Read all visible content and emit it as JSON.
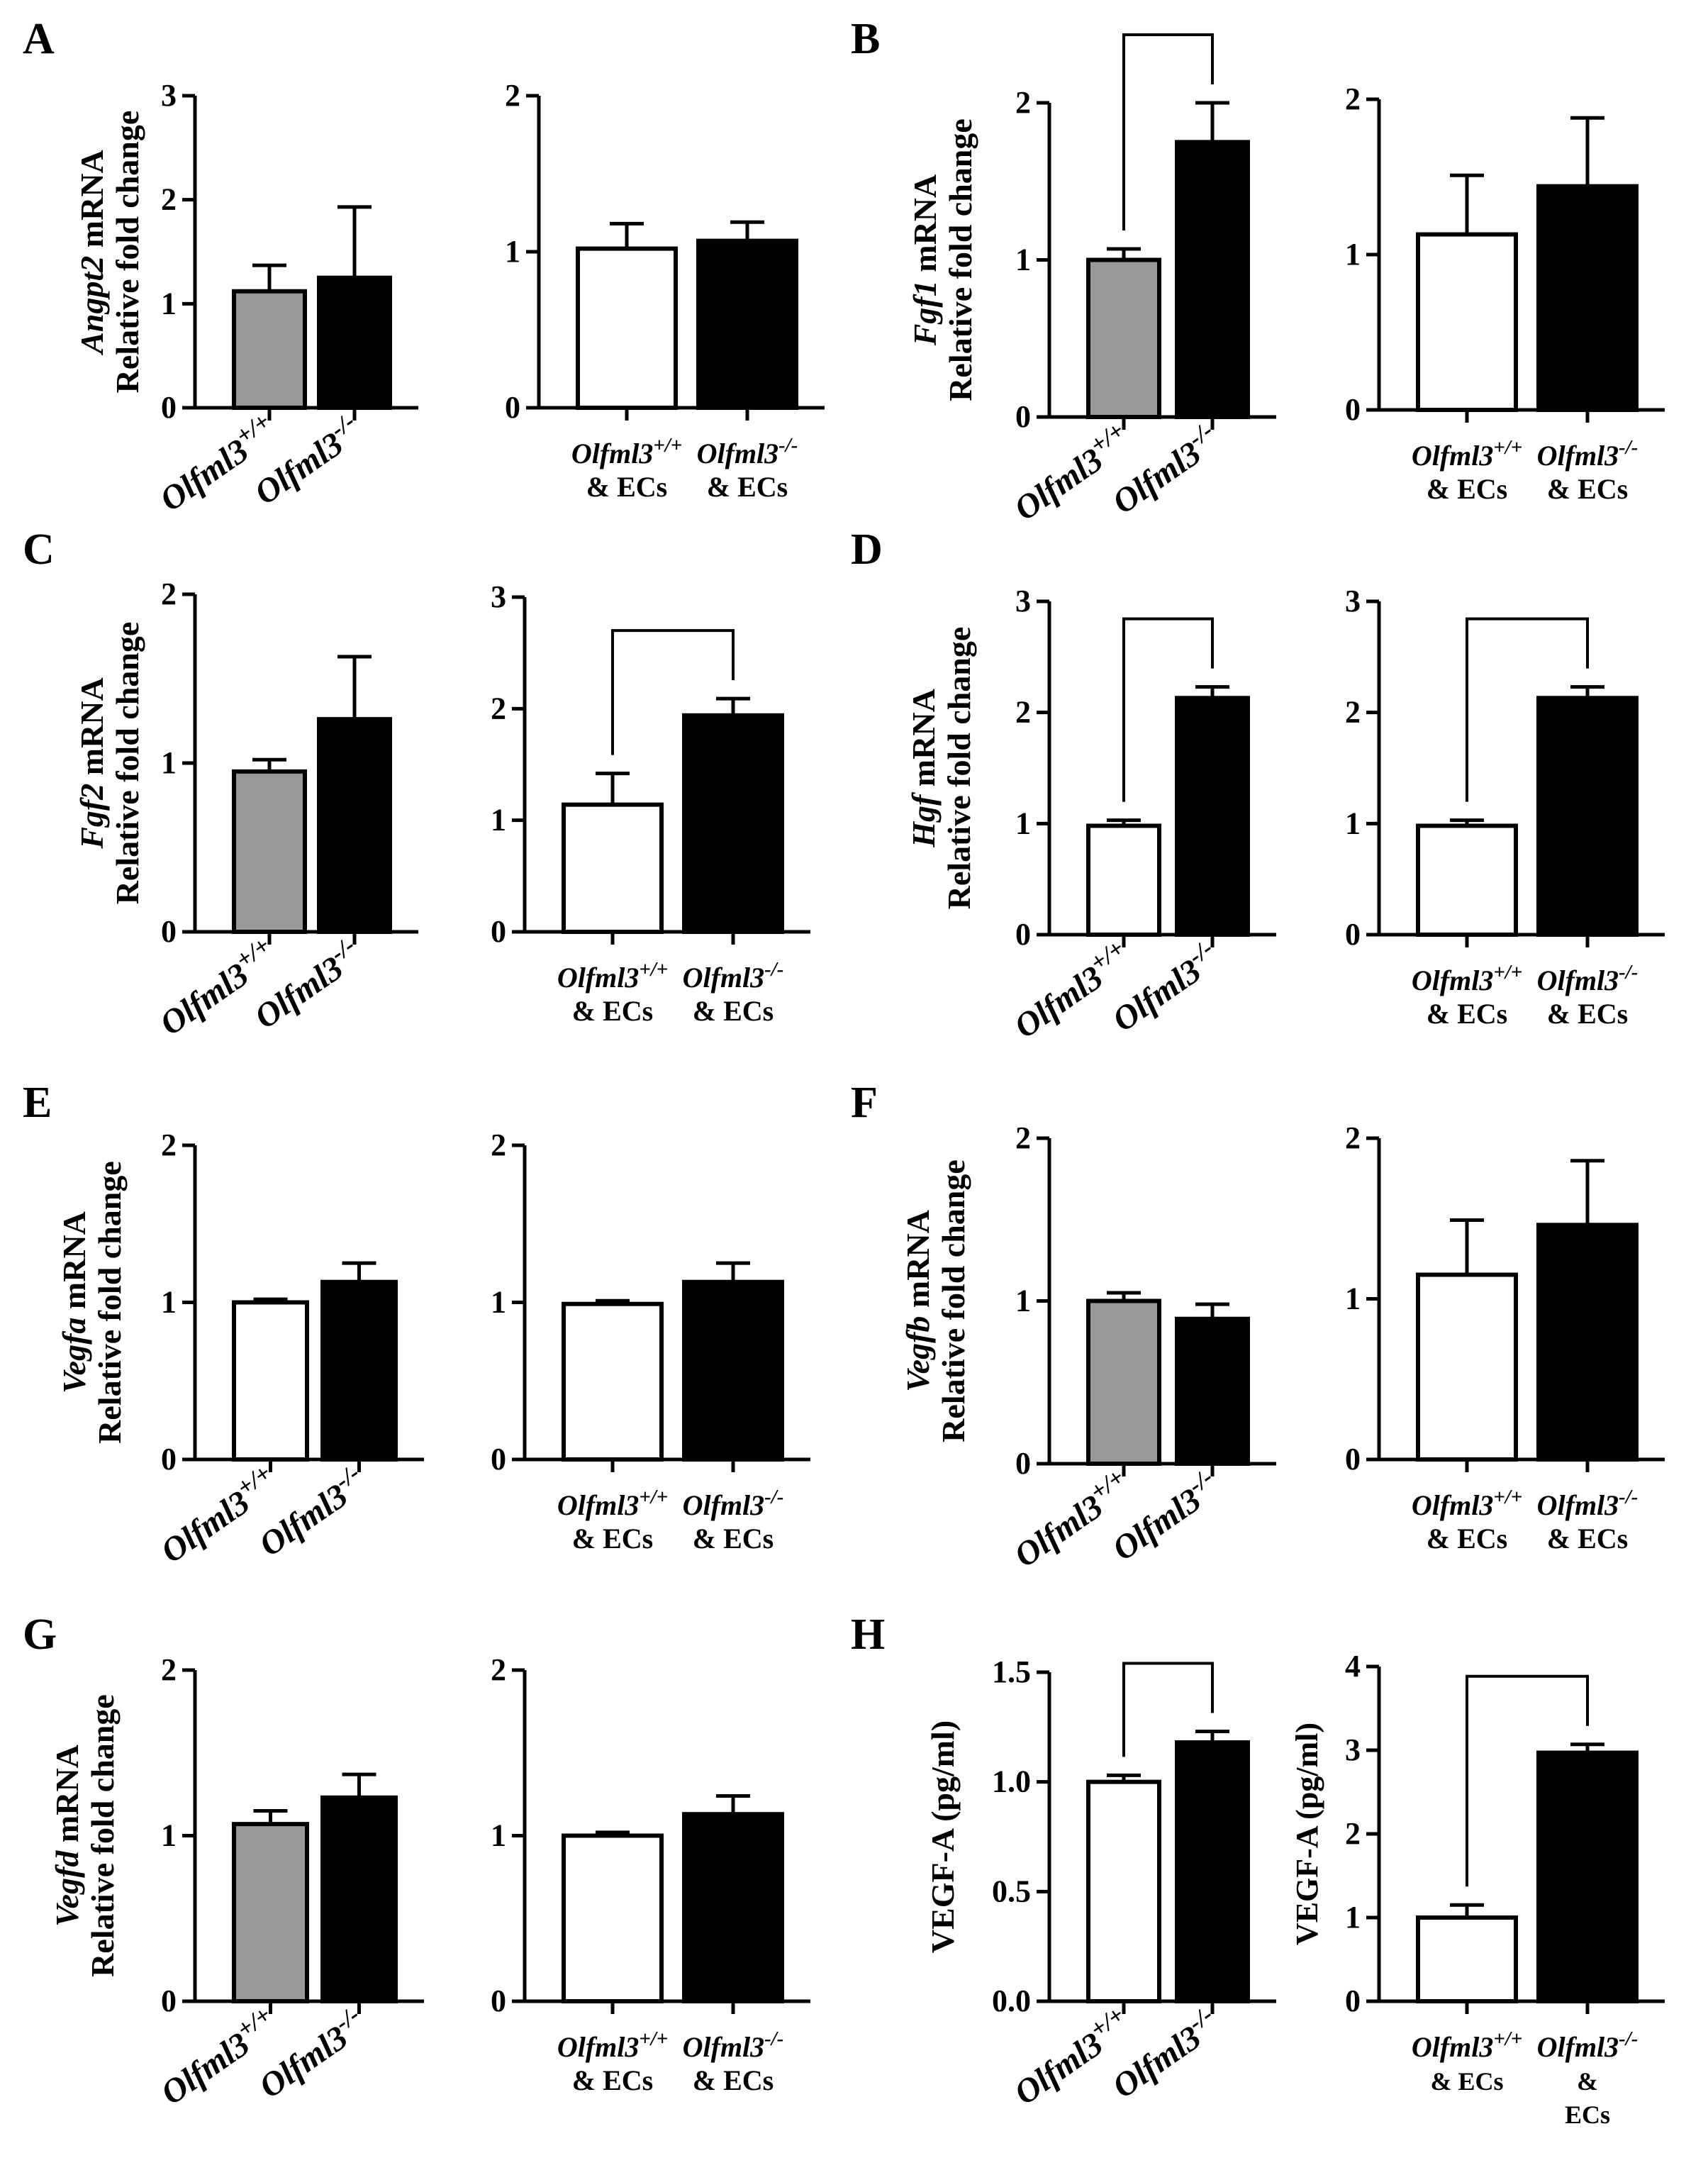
{
  "figure": {
    "panels": [
      {
        "letter": "A",
        "ylabel": [
          "Angpt2 mRNA",
          "Relative fold change"
        ],
        "ylabel_italic_word": "Angpt2"
      },
      {
        "letter": "B",
        "ylabel": [
          "Fgf1 mRNA",
          "Relative fold change"
        ],
        "ylabel_italic_word": "Fgf1"
      },
      {
        "letter": "C",
        "ylabel": [
          "Fgf2 mRNA",
          "Relative fold change"
        ],
        "ylabel_italic_word": "Fgf2"
      },
      {
        "letter": "D",
        "ylabel": [
          "Hgf mRNA",
          "Relative fold change"
        ],
        "ylabel_italic_word": "Hgf"
      },
      {
        "letter": "E",
        "ylabel": [
          "Vegfa mRNA",
          "Relative fold change"
        ],
        "ylabel_italic_word": "Vegfa"
      },
      {
        "letter": "F",
        "ylabel": [
          "Vegfb mRNA",
          "Relative fold change"
        ],
        "ylabel_italic_word": "Vegfb"
      },
      {
        "letter": "G",
        "ylabel": [
          "Vegfd mRNA",
          "Relative fold change"
        ],
        "ylabel_italic_word": "Vegfd"
      },
      {
        "letter": "H",
        "ylabel": [
          "VEGF-A (pg/ml)"
        ],
        "ylabel_italic_word": ""
      }
    ],
    "colors": {
      "gray": "#999999",
      "black": "#000000",
      "white": "#ffffff"
    }
  },
  "chart_data": [
    {
      "type": "bar",
      "panel": "A",
      "title": "",
      "xlabel": "",
      "ylabel": "Angpt2 mRNA Relative fold change",
      "ylim": [
        0,
        3
      ],
      "yticks": [
        "0",
        "1",
        "2",
        "3"
      ],
      "categories": [
        "Olfml3+/+",
        "Olfml3-/-"
      ],
      "values": [
        1.12,
        1.25
      ],
      "errors": [
        0.25,
        0.68
      ],
      "fills": [
        "gray",
        "black"
      ],
      "sig_bracket": false,
      "tick_style": "rot"
    },
    {
      "type": "bar",
      "panel": "A",
      "title": "",
      "xlabel": "",
      "ylabel": "",
      "ylim": [
        0,
        2
      ],
      "yticks": [
        "0",
        "1",
        "2"
      ],
      "categories": [
        "Olfml3+/+ & ECs",
        "Olfml3-/- & ECs"
      ],
      "values": [
        1.02,
        1.07
      ],
      "errors": [
        0.16,
        0.12
      ],
      "fills": [
        "white",
        "black"
      ],
      "sig_bracket": false,
      "tick_style": "ecs"
    },
    {
      "type": "bar",
      "panel": "B",
      "title": "",
      "xlabel": "",
      "ylabel": "Fgf1 mRNA Relative fold change",
      "ylim": [
        0,
        2
      ],
      "yticks": [
        "0",
        "1",
        "2"
      ],
      "categories": [
        "Olfml3+/+",
        "Olfml3-/-"
      ],
      "values": [
        1.0,
        1.75
      ],
      "errors": [
        0.07,
        0.25
      ],
      "fills": [
        "gray",
        "black"
      ],
      "sig_bracket": true,
      "tick_style": "rot"
    },
    {
      "type": "bar",
      "panel": "B",
      "title": "",
      "xlabel": "",
      "ylabel": "",
      "ylim": [
        0,
        2
      ],
      "yticks": [
        "0",
        "1",
        "2"
      ],
      "categories": [
        "Olfml3+/+ & ECs",
        "Olfml3-/- & ECs"
      ],
      "values": [
        1.13,
        1.44
      ],
      "errors": [
        0.38,
        0.44
      ],
      "fills": [
        "white",
        "black"
      ],
      "sig_bracket": false,
      "tick_style": "ecs"
    },
    {
      "type": "bar",
      "panel": "C",
      "title": "",
      "xlabel": "",
      "ylabel": "Fgf2 mRNA Relative fold change",
      "ylim": [
        0,
        2
      ],
      "yticks": [
        "0",
        "1",
        "2"
      ],
      "categories": [
        "Olfml3+/+",
        "Olfml3-/-"
      ],
      "values": [
        0.95,
        1.26
      ],
      "errors": [
        0.07,
        0.37
      ],
      "fills": [
        "gray",
        "black"
      ],
      "sig_bracket": false,
      "tick_style": "rot"
    },
    {
      "type": "bar",
      "panel": "C",
      "title": "",
      "xlabel": "",
      "ylabel": "",
      "ylim": [
        0,
        3
      ],
      "yticks": [
        "0",
        "1",
        "2",
        "3"
      ],
      "categories": [
        "Olfml3+/+ & ECs",
        "Olfml3-/- & ECs"
      ],
      "values": [
        1.14,
        1.94
      ],
      "errors": [
        0.28,
        0.15
      ],
      "fills": [
        "white",
        "black"
      ],
      "sig_bracket": true,
      "tick_style": "ecs"
    },
    {
      "type": "bar",
      "panel": "D",
      "title": "",
      "xlabel": "",
      "ylabel": "Hgf mRNA Relative fold change",
      "ylim": [
        0,
        3
      ],
      "yticks": [
        "0",
        "1",
        "2",
        "3"
      ],
      "categories": [
        "Olfml3+/+",
        "Olfml3-/-"
      ],
      "values": [
        0.98,
        2.13
      ],
      "errors": [
        0.05,
        0.1
      ],
      "fills": [
        "white",
        "black"
      ],
      "sig_bracket": true,
      "tick_style": "rot"
    },
    {
      "type": "bar",
      "panel": "D",
      "title": "",
      "xlabel": "",
      "ylabel": "",
      "ylim": [
        0,
        3
      ],
      "yticks": [
        "0",
        "1",
        "2",
        "3"
      ],
      "categories": [
        "Olfml3+/+ & ECs",
        "Olfml3-/- & ECs"
      ],
      "values": [
        0.98,
        2.13
      ],
      "errors": [
        0.05,
        0.1
      ],
      "fills": [
        "white",
        "black"
      ],
      "sig_bracket": true,
      "tick_style": "ecs"
    },
    {
      "type": "bar",
      "panel": "E",
      "title": "",
      "xlabel": "",
      "ylabel": "Vegfa mRNA Relative fold change",
      "ylim": [
        0,
        2
      ],
      "yticks": [
        "0",
        "1",
        "2"
      ],
      "categories": [
        "Olfml3+/+",
        "Olfml3-/-"
      ],
      "values": [
        1.0,
        1.13
      ],
      "errors": [
        0.02,
        0.12
      ],
      "fills": [
        "white",
        "black"
      ],
      "sig_bracket": false,
      "tick_style": "rot"
    },
    {
      "type": "bar",
      "panel": "E",
      "title": "",
      "xlabel": "",
      "ylabel": "",
      "ylim": [
        0,
        2
      ],
      "yticks": [
        "0",
        "1",
        "2"
      ],
      "categories": [
        "Olfml3+/+ & ECs",
        "Olfml3-/- & ECs"
      ],
      "values": [
        0.99,
        1.13
      ],
      "errors": [
        0.02,
        0.12
      ],
      "fills": [
        "white",
        "black"
      ],
      "sig_bracket": false,
      "tick_style": "ecs"
    },
    {
      "type": "bar",
      "panel": "F",
      "title": "",
      "xlabel": "",
      "ylabel": "Vegfb mRNA Relative fold change",
      "ylim": [
        0,
        2
      ],
      "yticks": [
        "0",
        "1",
        "2"
      ],
      "categories": [
        "Olfml3+/+",
        "Olfml3-/-"
      ],
      "values": [
        1.0,
        0.89
      ],
      "errors": [
        0.05,
        0.09
      ],
      "fills": [
        "gray",
        "black"
      ],
      "sig_bracket": false,
      "tick_style": "rot"
    },
    {
      "type": "bar",
      "panel": "F",
      "title": "",
      "xlabel": "",
      "ylabel": "",
      "ylim": [
        0,
        2
      ],
      "yticks": [
        "0",
        "1",
        "2"
      ],
      "categories": [
        "Olfml3+/+ & ECs",
        "Olfml3-/- & ECs"
      ],
      "values": [
        1.15,
        1.46
      ],
      "errors": [
        0.34,
        0.4
      ],
      "fills": [
        "white",
        "black"
      ],
      "sig_bracket": false,
      "tick_style": "ecs"
    },
    {
      "type": "bar",
      "panel": "G",
      "title": "",
      "xlabel": "",
      "ylabel": "Vegfd mRNA Relative fold change",
      "ylim": [
        0,
        2
      ],
      "yticks": [
        "0",
        "1",
        "2"
      ],
      "categories": [
        "Olfml3+/+",
        "Olfml3-/-"
      ],
      "values": [
        1.07,
        1.23
      ],
      "errors": [
        0.08,
        0.14
      ],
      "fills": [
        "gray",
        "black"
      ],
      "sig_bracket": false,
      "tick_style": "rot"
    },
    {
      "type": "bar",
      "panel": "G",
      "title": "",
      "xlabel": "",
      "ylabel": "",
      "ylim": [
        0,
        2
      ],
      "yticks": [
        "0",
        "1",
        "2"
      ],
      "categories": [
        "Olfml3+/+ & ECs",
        "Olfml3-/- & ECs"
      ],
      "values": [
        1.0,
        1.13
      ],
      "errors": [
        0.02,
        0.11
      ],
      "fills": [
        "white",
        "black"
      ],
      "sig_bracket": false,
      "tick_style": "ecs"
    },
    {
      "type": "bar",
      "panel": "H",
      "title": "",
      "xlabel": "",
      "ylabel": "VEGF-A (pg/ml)",
      "ylim": [
        0,
        1.5
      ],
      "yticks": [
        "0.0",
        "0.5",
        "1.0",
        "1.5"
      ],
      "categories": [
        "Olfml3+/+",
        "Olfml3-/-"
      ],
      "values": [
        1.0,
        1.18
      ],
      "errors": [
        0.03,
        0.05
      ],
      "fills": [
        "white",
        "black"
      ],
      "sig_bracket": true,
      "tick_style": "rot"
    },
    {
      "type": "bar",
      "panel": "H",
      "title": "",
      "xlabel": "",
      "ylabel": "VEGF-A (pg/ml)",
      "ylim": [
        0,
        4
      ],
      "yticks": [
        "0",
        "1",
        "2",
        "3",
        "4"
      ],
      "categories": [
        "Olfml3+/+ & ECs",
        "Olfml3-/- & ECs"
      ],
      "values": [
        1.0,
        2.97
      ],
      "errors": [
        0.15,
        0.1
      ],
      "fills": [
        "white",
        "black"
      ],
      "sig_bracket": true,
      "tick_style": "ecs3"
    }
  ]
}
